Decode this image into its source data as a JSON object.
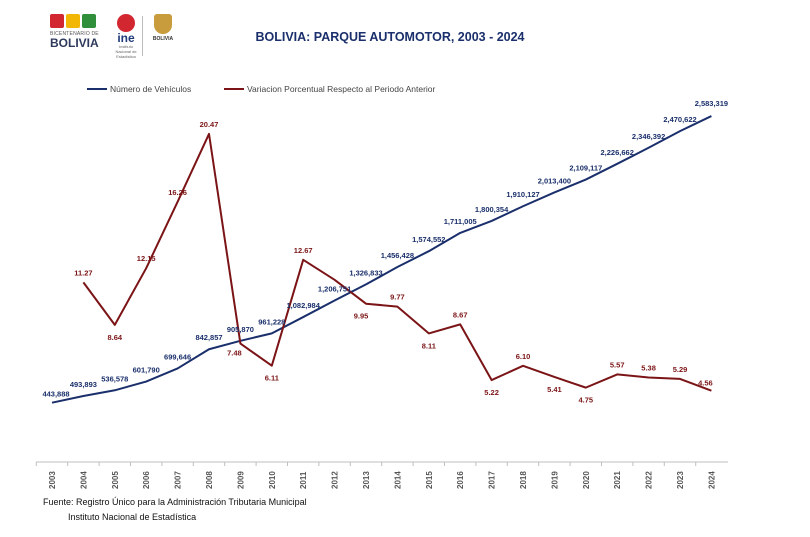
{
  "header": {
    "title": "BOLIVIA: PARQUE AUTOMOTOR, 2003 - 2024",
    "logos": {
      "bicentenario_small": "BICENTENARIO DE",
      "bicentenario": "BOLIVIA",
      "ine": "ine",
      "ine_sub": "Instituto Nacional de Estadística",
      "estado": "BOLIVIA"
    }
  },
  "colors": {
    "vehicles": "#1a2f6b",
    "variation": "#7b1416",
    "title": "#1a2f6b"
  },
  "chart_data": {
    "type": "line",
    "title": "BOLIVIA: PARQUE AUTOMOTOR, 2003 - 2024",
    "xlabel": "",
    "ylabel": "",
    "grid": false,
    "legend_position": "top-left",
    "categories": [
      "2003",
      "2004",
      "2005",
      "2006",
      "2007",
      "2008",
      "2009",
      "2010",
      "2011",
      "2012",
      "2013",
      "2014",
      "2015",
      "2016",
      "2017",
      "2018",
      "2019",
      "2020",
      "2021",
      "2022",
      "2023",
      "2024"
    ],
    "series": [
      {
        "name": "Número de Vehículos",
        "axis": "left",
        "values": [
          443888,
          493893,
          536578,
          601790,
          699646,
          842857,
          905870,
          961228,
          1082984,
          1206751,
          1326833,
          1456428,
          1574552,
          1711005,
          1800354,
          1910127,
          2013400,
          2109117,
          2226662,
          2346392,
          2470622,
          2583319
        ],
        "labels": [
          "443,888",
          "493,893",
          "536,578",
          "601,790",
          "699,646",
          "842,857",
          "905,870",
          "961,228",
          "1,082,984",
          "1,206,751",
          "1,326,833",
          "1,456,428",
          "1,574,552",
          "1,711,005",
          "1,800,354",
          "1,910,127",
          "2,013,400",
          "2,109,117",
          "2,226,662",
          "2,346,392",
          "2,470,622",
          "2,583,319"
        ]
      },
      {
        "name": "Variacion Porcentual Respecto al Periodo Anterior",
        "axis": "right",
        "values": [
          null,
          11.27,
          8.64,
          12.15,
          16.26,
          20.47,
          7.48,
          6.11,
          12.67,
          11.43,
          9.95,
          9.77,
          8.11,
          8.67,
          5.22,
          6.1,
          5.41,
          4.75,
          5.57,
          5.38,
          5.29,
          4.56
        ],
        "labels": [
          "",
          "11.27",
          "8.64",
          "12.15",
          "16.26",
          "20.47",
          "7.48",
          "6.11",
          "12.67",
          "",
          "9.95",
          "9.77",
          "8.11",
          "8.67",
          "5.22",
          "6.10",
          "5.41",
          "4.75",
          "5.57",
          "5.38",
          "5.29",
          "4.56"
        ]
      }
    ]
  },
  "source": {
    "line1": "Fuente: Registro Único para la Administración Tributaria Municipal",
    "line2": "Instituto Nacional de Estadística"
  }
}
